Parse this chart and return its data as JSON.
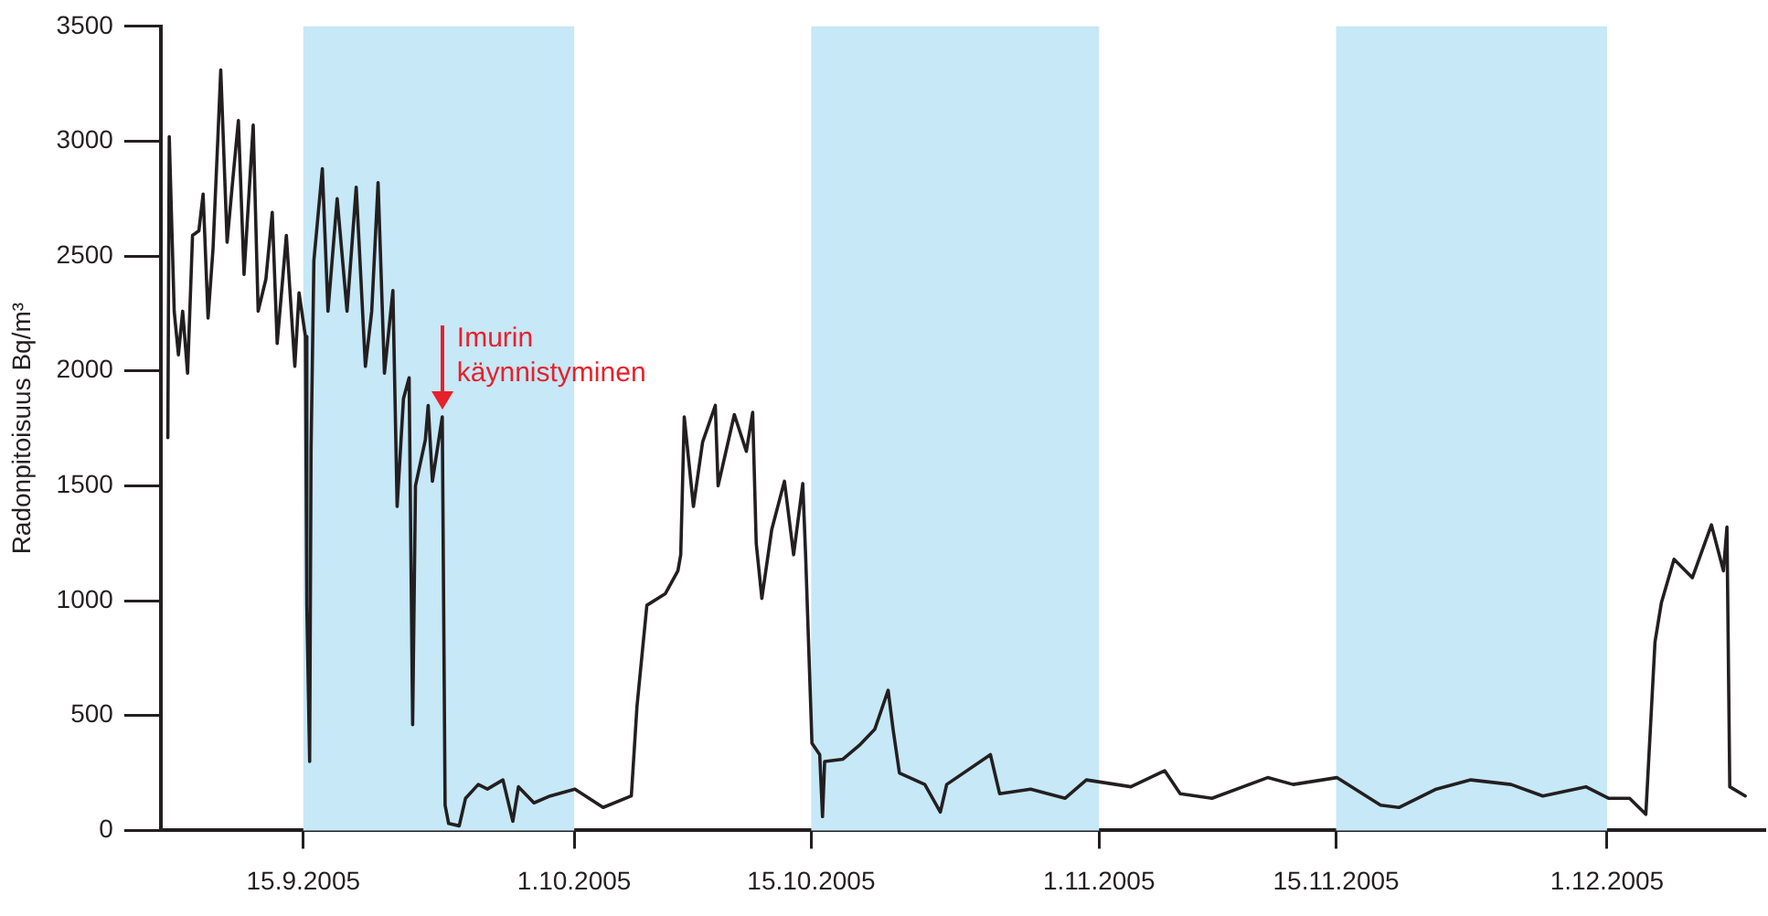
{
  "chart_data": {
    "type": "line",
    "ylabel": "Radonpitoisuus Bq/m³",
    "xlim": [
      "2005-09-06T14:00",
      "2005-12-10T07:00"
    ],
    "xticks": [
      {
        "value": "2005-09-15",
        "label": "15.9.2005"
      },
      {
        "value": "2005-10-01",
        "label": "1.10.2005"
      },
      {
        "value": "2005-10-15",
        "label": "15.10.2005"
      },
      {
        "value": "2005-11-01",
        "label": "1.11.2005"
      },
      {
        "value": "2005-11-15",
        "label": "15.11.2005"
      },
      {
        "value": "2005-12-01",
        "label": "1.12.2005"
      }
    ],
    "ylim": [
      0,
      3500
    ],
    "yticks": [
      0,
      500,
      1000,
      1500,
      2000,
      2500,
      3000,
      3500
    ],
    "marker": "none",
    "line_style": "solid",
    "bands": [
      {
        "axis": "x",
        "from": "2005-09-15",
        "to": "2005-10-01",
        "color": "#c6e8f7"
      },
      {
        "axis": "x",
        "from": "2005-10-15",
        "to": "2005-11-01",
        "color": "#c6e8f7"
      },
      {
        "axis": "x",
        "from": "2005-11-15",
        "to": "2005-12-01",
        "color": "#c6e8f7"
      }
    ],
    "annotations": [
      {
        "text": "Imurin käynnistyminen",
        "x": "2005-09-23T05:00",
        "y": 1800
      }
    ],
    "x": [
      "2005-09-07T00:00",
      "2005-09-07T02:00",
      "2005-09-07T09:00",
      "2005-09-07T15:00",
      "2005-09-07T21:00",
      "2005-09-08T04:00",
      "2005-09-08T11:00",
      "2005-09-08T20:00",
      "2005-09-09T02:00",
      "2005-09-09T09:00",
      "2005-09-09T16:00",
      "2005-09-09T23:00",
      "2005-09-10T03:00",
      "2005-09-10T12:00",
      "2005-09-10T20:00",
      "2005-09-11T04:00",
      "2005-09-11T12:00",
      "2005-09-11T19:00",
      "2005-09-12T01:00",
      "2005-09-12T08:00",
      "2005-09-12T19:00",
      "2005-09-13T04:00",
      "2005-09-13T11:00",
      "2005-09-14T00:00",
      "2005-09-14T12:00",
      "2005-09-14T18:00",
      "2005-09-15T03:00",
      "2005-09-15T05:00",
      "2005-09-15T09:00",
      "2005-09-15T11:00",
      "2005-09-15T15:00",
      "2005-09-16T03:00",
      "2005-09-16T11:00",
      "2005-09-17T00:00",
      "2005-09-17T14:00",
      "2005-09-18T03:00",
      "2005-09-18T16:00",
      "2005-09-19T01:00",
      "2005-09-19T10:00",
      "2005-09-19T19:00",
      "2005-09-20T07:00",
      "2005-09-20T13:00",
      "2005-09-20T22:00",
      "2005-09-21T06:00",
      "2005-09-21T11:00",
      "2005-09-21T15:00",
      "2005-09-22T05:00",
      "2005-09-22T09:00",
      "2005-09-22T15:00",
      "2005-09-23T05:00",
      "2005-09-23T09:00",
      "2005-09-23T14:00",
      "2005-09-24T05:00",
      "2005-09-24T14:00",
      "2005-09-25T08:00",
      "2005-09-25T21:00",
      "2005-09-26T19:00",
      "2005-09-27T09:00",
      "2005-09-27T17:00",
      "2005-09-28T15:00",
      "2005-09-29T14:00",
      "2005-10-01T01:00",
      "2005-10-02T17:00",
      "2005-10-04T09:00",
      "2005-10-04T17:00",
      "2005-10-05T07:00",
      "2005-10-06T09:00",
      "2005-10-07T03:00",
      "2005-10-07T07:00",
      "2005-10-07T12:00",
      "2005-10-08T01:00",
      "2005-10-08T14:00",
      "2005-10-09T08:00",
      "2005-10-09T12:00",
      "2005-10-10T11:00",
      "2005-10-11T04:00",
      "2005-10-11T13:00",
      "2005-10-11T18:00",
      "2005-10-12T02:00",
      "2005-10-12T16:00",
      "2005-10-13T10:00",
      "2005-10-13T23:00",
      "2005-10-14T12:00",
      "2005-10-14T16:00",
      "2005-10-15T01:00",
      "2005-10-15T12:00",
      "2005-10-15T16:00",
      "2005-10-15T19:00",
      "2005-10-16T21:00",
      "2005-10-17T20:00",
      "2005-10-18T18:00",
      "2005-10-19T13:00",
      "2005-10-19T20:00",
      "2005-10-20T05:00",
      "2005-10-21T17:00",
      "2005-10-22T15:00",
      "2005-10-23T00:00",
      "2005-10-25T14:00",
      "2005-10-26T03:00",
      "2005-10-27T23:00",
      "2005-10-30T00:00",
      "2005-10-31T06:00",
      "2005-11-02T21:00",
      "2005-11-04T21:00",
      "2005-11-05T19:00",
      "2005-11-07T16:00",
      "2005-11-10T23:00",
      "2005-11-12T11:00",
      "2005-11-15T01:00",
      "2005-11-17T15:00",
      "2005-11-18T17:00",
      "2005-11-20T22:00",
      "2005-11-22T23:00",
      "2005-11-25T08:00",
      "2005-11-27T05:00",
      "2005-11-29T18:00",
      "2005-12-01T02:00",
      "2005-12-02T08:00",
      "2005-12-03T07:00",
      "2005-12-03T20:00",
      "2005-12-04T05:00",
      "2005-12-04T23:00",
      "2005-12-06T01:00",
      "2005-12-07T04:00",
      "2005-12-07T21:00",
      "2005-12-08T02:00",
      "2005-12-08T06:00",
      "2005-12-09T04:00"
    ],
    "series": [
      {
        "color": "#231f20",
        "values": [
          1710,
          3020,
          2260,
          2070,
          2260,
          1990,
          2590,
          2610,
          2770,
          2230,
          2530,
          3020,
          3310,
          2560,
          2830,
          3090,
          2420,
          2770,
          3070,
          2260,
          2400,
          2690,
          2120,
          2590,
          2020,
          2340,
          2150,
          980,
          300,
          1660,
          2480,
          2880,
          2260,
          2750,
          2260,
          2800,
          2020,
          2260,
          2820,
          1990,
          2350,
          1410,
          1880,
          1970,
          460,
          1500,
          1700,
          1850,
          1520,
          1800,
          110,
          30,
          20,
          140,
          200,
          180,
          220,
          40,
          190,
          120,
          150,
          180,
          100,
          150,
          540,
          980,
          1030,
          1130,
          1200,
          1800,
          1410,
          1690,
          1850,
          1500,
          1810,
          1650,
          1820,
          1250,
          1010,
          1310,
          1520,
          1200,
          1510,
          1200,
          380,
          330,
          60,
          300,
          310,
          370,
          440,
          610,
          440,
          250,
          200,
          80,
          200,
          330,
          160,
          180,
          140,
          220,
          190,
          260,
          160,
          140,
          230,
          200,
          230,
          110,
          100,
          180,
          220,
          200,
          150,
          190,
          140,
          140,
          70,
          820,
          990,
          1180,
          1100,
          1330,
          1130,
          1320,
          190,
          150
        ]
      }
    ]
  }
}
